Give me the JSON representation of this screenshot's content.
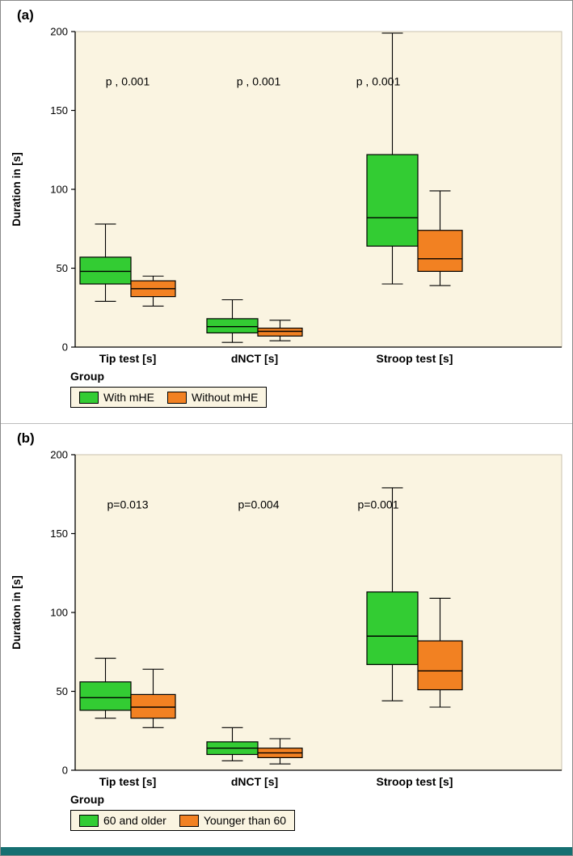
{
  "figure": {
    "plot_bg": "#faf4e1",
    "bottom_bar_color": "#156f71"
  },
  "chart_data": [
    {
      "type": "box",
      "panel_label": "(a)",
      "ylabel": "Duration in [s]",
      "ylim": [
        0,
        200
      ],
      "yticks": [
        0,
        50,
        100,
        150,
        200
      ],
      "grid": false,
      "plot_bg": "#faf4e1",
      "categories": [
        "Tip test [s]",
        "dNCT [s]",
        "Stroop test [s]"
      ],
      "p_values": [
        "p , 0.001",
        "p , 0.001",
        "p , 0.001"
      ],
      "p_label_y": 166,
      "legend_title": "Group",
      "legend_position": "bottom-left",
      "series": [
        {
          "name": "With mHE",
          "color": "#33cc33",
          "boxes": [
            {
              "low": 29,
              "q1": 40,
              "median": 48,
              "q3": 57,
              "high": 78
            },
            {
              "low": 3,
              "q1": 9,
              "median": 13,
              "q3": 18,
              "high": 30
            },
            {
              "low": 40,
              "q1": 64,
              "median": 82,
              "q3": 122,
              "high": 199
            }
          ]
        },
        {
          "name": "Without mHE",
          "color": "#f28122",
          "boxes": [
            {
              "low": 26,
              "q1": 32,
              "median": 37,
              "q3": 42,
              "high": 45
            },
            {
              "low": 4,
              "q1": 7,
              "median": 10,
              "q3": 12,
              "high": 17
            },
            {
              "low": 39,
              "q1": 48,
              "median": 56,
              "q3": 74,
              "high": 99
            }
          ]
        }
      ]
    },
    {
      "type": "box",
      "panel_label": "(b)",
      "ylabel": "Duration in [s]",
      "ylim": [
        0,
        200
      ],
      "yticks": [
        0,
        50,
        100,
        150,
        200
      ],
      "grid": false,
      "plot_bg": "#faf4e1",
      "categories": [
        "Tip test [s]",
        "dNCT [s]",
        "Stroop test [s]"
      ],
      "p_values": [
        "p=0.013",
        "p=0.004",
        "p=0.001"
      ],
      "p_label_y": 166,
      "legend_title": "Group",
      "legend_position": "bottom-left",
      "series": [
        {
          "name": "60 and older",
          "color": "#33cc33",
          "boxes": [
            {
              "low": 33,
              "q1": 38,
              "median": 46,
              "q3": 56,
              "high": 71
            },
            {
              "low": 6,
              "q1": 10,
              "median": 14,
              "q3": 18,
              "high": 27
            },
            {
              "low": 44,
              "q1": 67,
              "median": 85,
              "q3": 113,
              "high": 179
            }
          ]
        },
        {
          "name": "Younger than 60",
          "color": "#f28122",
          "boxes": [
            {
              "low": 27,
              "q1": 33,
              "median": 40,
              "q3": 48,
              "high": 64
            },
            {
              "low": 4,
              "q1": 8,
              "median": 11,
              "q3": 14,
              "high": 20
            },
            {
              "low": 40,
              "q1": 51,
              "median": 63,
              "q3": 82,
              "high": 109
            }
          ]
        }
      ]
    }
  ]
}
